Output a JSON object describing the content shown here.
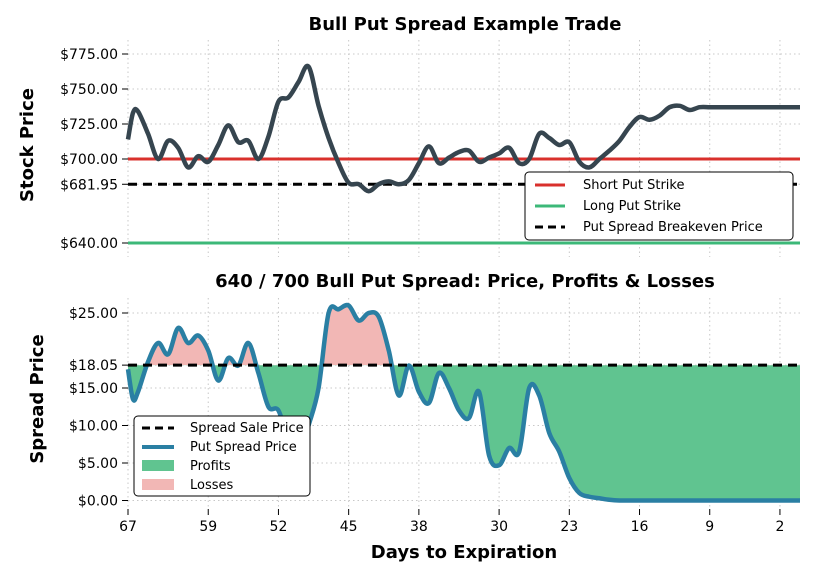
{
  "chart_data": [
    {
      "type": "line",
      "title": "Bull Put Spread Example Trade",
      "ylabel": "Stock Price",
      "xlabel": "",
      "x_direction": "days to expiration decreasing left to right",
      "xlim": [
        67,
        0
      ],
      "ylim": [
        630,
        785
      ],
      "ytick_labels": [
        "$775.00",
        "$750.00",
        "$725.00",
        "$700.00",
        "$681.95",
        "$640.00"
      ],
      "ytick_values": [
        775,
        750,
        725,
        700,
        681.95,
        640
      ],
      "grid": true,
      "legend_position": "lower-right",
      "series": [
        {
          "name": "",
          "color": "#36454f",
          "x": [
            67,
            66.5,
            66,
            65,
            64,
            63,
            62,
            61,
            60,
            59,
            58,
            57,
            56,
            55,
            54,
            53,
            52,
            51,
            50,
            49,
            48,
            47,
            46,
            45,
            44,
            43,
            42,
            41,
            40,
            39,
            38,
            37,
            36,
            35,
            34,
            33,
            32,
            31,
            30,
            29,
            28,
            27,
            26,
            25,
            24,
            23,
            22,
            21,
            20,
            19,
            18,
            17,
            16,
            15,
            14,
            13,
            12,
            11,
            10,
            9,
            8,
            7,
            6,
            5,
            4,
            3,
            2,
            1,
            0
          ],
          "y": [
            714,
            733,
            734,
            718,
            700,
            713,
            708,
            694,
            702,
            698,
            710,
            724,
            712,
            713,
            700,
            716,
            741,
            744,
            755,
            766,
            738,
            715,
            697,
            683,
            682,
            677,
            682,
            684,
            682,
            685,
            697,
            709,
            697,
            701,
            705,
            706,
            698,
            701,
            704,
            708,
            697,
            700,
            718,
            715,
            710,
            712,
            698,
            694,
            700,
            706,
            713,
            723,
            730,
            728,
            731,
            737,
            738,
            735,
            737,
            737,
            737,
            737,
            737,
            737,
            737,
            737,
            737,
            737,
            737
          ]
        },
        {
          "name": "Short Put Strike",
          "color": "#d9302c",
          "value": 700
        },
        {
          "name": "Long Put Strike",
          "color": "#3cb878",
          "value": 640
        },
        {
          "name": "Put Spread Breakeven Price",
          "color": "#000000",
          "value": 681.95,
          "style": "dashed"
        }
      ]
    },
    {
      "type": "area",
      "title": "640 / 700 Bull Put Spread: Price, Profits & Losses",
      "ylabel": "Spread Price",
      "xlabel": "Days to Expiration",
      "xlim": [
        67,
        0
      ],
      "ylim": [
        -1,
        27
      ],
      "xtick_labels": [
        "67",
        "59",
        "52",
        "45",
        "38",
        "30",
        "23",
        "16",
        "9",
        "2"
      ],
      "xtick_values": [
        67,
        59,
        52,
        45,
        38,
        30,
        23,
        16,
        9,
        2
      ],
      "ytick_labels": [
        "$25.00",
        "$18.05",
        "$15.00",
        "$10.00",
        "$5.00",
        "$0.00"
      ],
      "ytick_values": [
        25,
        18.05,
        15,
        10,
        5,
        0
      ],
      "grid": true,
      "legend_position": "lower-left",
      "reference": {
        "name": "Spread Sale Price",
        "value": 18.05,
        "color": "#000000",
        "style": "dashed"
      },
      "series": [
        {
          "name": "Put Spread Price",
          "color": "#2a7fa3",
          "x": [
            67,
            66.5,
            66,
            65,
            64,
            63,
            62,
            61,
            60,
            59,
            58,
            57,
            56,
            55,
            54,
            53,
            52,
            51,
            50,
            49,
            48,
            47,
            46,
            45,
            44,
            43,
            42,
            41,
            40,
            39,
            38,
            37,
            36,
            35,
            34,
            33,
            32,
            31,
            30,
            29,
            28,
            27,
            26,
            25,
            24,
            23,
            22,
            21,
            20,
            19,
            18,
            17,
            16,
            15,
            14,
            13,
            12,
            11,
            10,
            9,
            8,
            7,
            6,
            5,
            4,
            3,
            2,
            1,
            0
          ],
          "y": [
            17.5,
            13.5,
            14.5,
            18.5,
            21,
            19.5,
            23,
            21,
            22,
            20,
            16,
            19,
            18,
            21,
            17,
            12.5,
            12,
            8,
            5.8,
            10,
            15,
            25,
            25.5,
            26,
            24,
            25,
            24.5,
            20,
            14,
            18,
            14.5,
            13,
            17,
            15,
            12,
            11,
            14.5,
            6,
            4.7,
            7,
            6.5,
            15,
            14,
            9,
            6.5,
            3,
            1,
            0.5,
            0.3,
            0.1,
            0,
            0,
            0,
            0,
            0,
            0,
            0,
            0,
            0,
            0,
            0,
            0,
            0,
            0,
            0,
            0,
            0,
            0,
            0
          ]
        },
        {
          "name": "Profits",
          "color": "#60c490"
        },
        {
          "name": "Losses",
          "color": "#f2b7b5"
        }
      ]
    }
  ]
}
